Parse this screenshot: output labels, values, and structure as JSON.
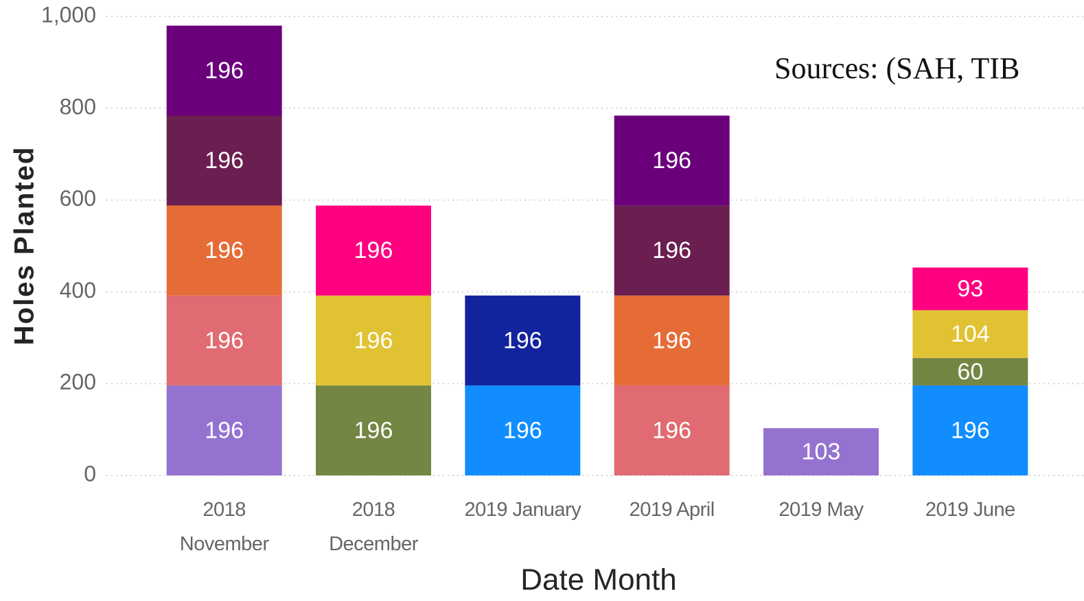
{
  "chart_data": {
    "type": "stacked_bar",
    "xlabel": "Date Month",
    "ylabel": "Holes Planted",
    "annotation": "Sources: (SAH, TIB",
    "categories": [
      "2018 November",
      "2018 December",
      "2019 January",
      "2019 April",
      "2019 May",
      "2019 June"
    ],
    "series": [
      {
        "color": "#9473d0",
        "values": [
          196,
          null,
          null,
          null,
          103,
          null
        ]
      },
      {
        "color": "#118dff",
        "values": [
          null,
          null,
          196,
          null,
          null,
          196
        ]
      },
      {
        "color": "#738643",
        "values": [
          null,
          196,
          null,
          null,
          null,
          60
        ]
      },
      {
        "color": "#e06b72",
        "values": [
          196,
          null,
          null,
          196,
          null,
          null
        ]
      },
      {
        "color": "#e1c233",
        "values": [
          null,
          196,
          null,
          null,
          null,
          104
        ]
      },
      {
        "color": "#12239e",
        "values": [
          null,
          null,
          196,
          null,
          null,
          null
        ]
      },
      {
        "color": "#e66c37",
        "values": [
          196,
          null,
          null,
          196,
          null,
          null
        ]
      },
      {
        "color": "#ff0080",
        "values": [
          null,
          196,
          null,
          null,
          null,
          93
        ]
      },
      {
        "color": "#6b1f50",
        "values": [
          196,
          null,
          null,
          196,
          null,
          null
        ]
      },
      {
        "color": "#6b007b",
        "values": [
          196,
          null,
          null,
          196,
          null,
          null
        ]
      }
    ],
    "ylim": [
      0,
      1000
    ],
    "yticks": [
      0,
      200,
      400,
      600,
      800,
      {
        "value": 1000,
        "label": "1,000"
      }
    ],
    "grid": true
  }
}
